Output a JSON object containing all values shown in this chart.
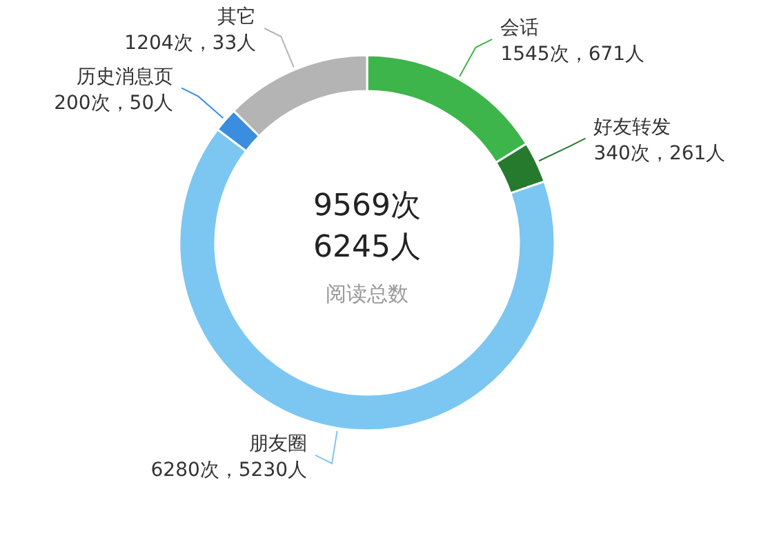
{
  "chart_data": {
    "type": "donut",
    "categories": [
      "会话",
      "好友转发",
      "朋友圈",
      "历史消息页",
      "其它"
    ],
    "values": [
      1545,
      340,
      6280,
      200,
      1204
    ],
    "colors": [
      "#3db54a",
      "#267a2e",
      "#7cc6f2",
      "#3b8de0",
      "#b4b4b4"
    ],
    "value_labels": [
      "1545次，671人",
      "340次，261人",
      "6280次，5230人",
      "200次，50人",
      "1204次，33人"
    ],
    "annotations": [
      "9569次",
      "6245人",
      "阅读总数"
    ]
  }
}
